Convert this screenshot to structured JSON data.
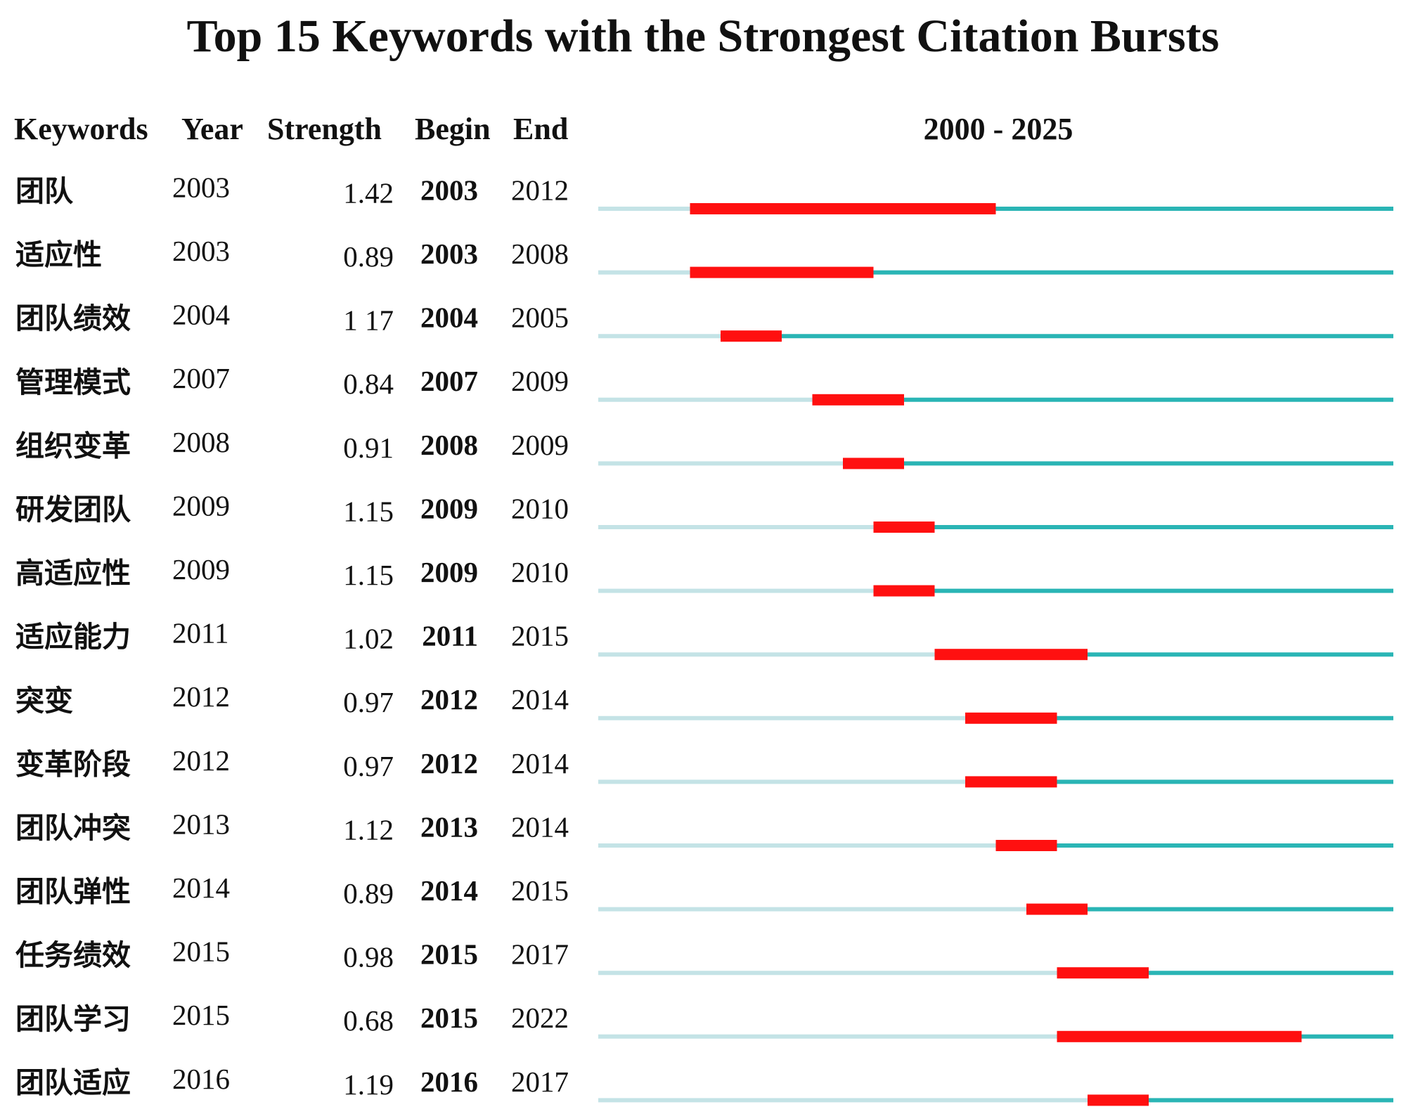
{
  "chart_data": {
    "type": "burst",
    "title": "Top 15 Keywords with the Strongest Citation Bursts",
    "headers": [
      "Keywords",
      "Year",
      "Strength",
      "Begin",
      "End"
    ],
    "range_label": "2000 - 2025",
    "xlim": [
      2000,
      2025
    ],
    "colors": {
      "before": "#c4e3e6",
      "after": "#2ab5b5",
      "burst": "#ff1010"
    },
    "rows": [
      {
        "keyword": "团队",
        "year": 2003,
        "strength": "1.42",
        "begin": 2003,
        "end": 2012
      },
      {
        "keyword": "适应性",
        "year": 2003,
        "strength": "0.89",
        "begin": 2003,
        "end": 2008
      },
      {
        "keyword": "团队绩效",
        "year": 2004,
        "strength": "1 17",
        "begin": 2004,
        "end": 2005
      },
      {
        "keyword": "管理模式",
        "year": 2007,
        "strength": "0.84",
        "begin": 2007,
        "end": 2009
      },
      {
        "keyword": "组织变革",
        "year": 2008,
        "strength": "0.91",
        "begin": 2008,
        "end": 2009
      },
      {
        "keyword": "研发团队",
        "year": 2009,
        "strength": "1.15",
        "begin": 2009,
        "end": 2010
      },
      {
        "keyword": "高适应性",
        "year": 2009,
        "strength": "1.15",
        "begin": 2009,
        "end": 2010
      },
      {
        "keyword": "适应能力",
        "year": 2011,
        "strength": "1.02",
        "begin": 2011,
        "end": 2015
      },
      {
        "keyword": "突变",
        "year": 2012,
        "strength": "0.97",
        "begin": 2012,
        "end": 2014
      },
      {
        "keyword": "变革阶段",
        "year": 2012,
        "strength": "0.97",
        "begin": 2012,
        "end": 2014
      },
      {
        "keyword": "团队冲突",
        "year": 2013,
        "strength": "1.12",
        "begin": 2013,
        "end": 2014
      },
      {
        "keyword": "团队弹性",
        "year": 2014,
        "strength": "0.89",
        "begin": 2014,
        "end": 2015
      },
      {
        "keyword": "任务绩效",
        "year": 2015,
        "strength": "0.98",
        "begin": 2015,
        "end": 2017
      },
      {
        "keyword": "团队学习",
        "year": 2015,
        "strength": "0.68",
        "begin": 2015,
        "end": 2022
      },
      {
        "keyword": "团队适应",
        "year": 2016,
        "strength": "1.19",
        "begin": 2016,
        "end": 2017
      }
    ]
  }
}
